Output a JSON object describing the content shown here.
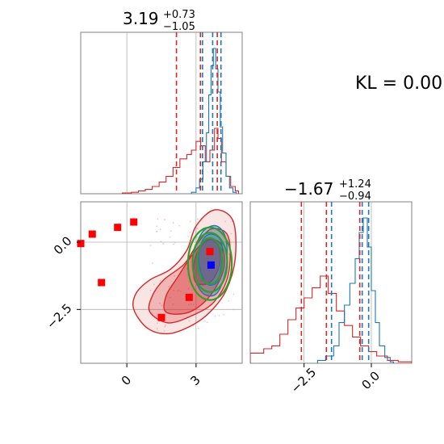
{
  "chart_data": {
    "type": "corner",
    "annotation": "KL = 0.00",
    "params": [
      {
        "median": "3.19",
        "err_plus": "+0.73",
        "err_minus": "−1.05"
      },
      {
        "median": "−1.67",
        "err_plus": "+1.24",
        "err_minus": "−0.94"
      }
    ],
    "x_range": [
      -2.0,
      5.0
    ],
    "y_range": [
      -4.5,
      1.5
    ],
    "x_ticks": [
      {
        "v": 0,
        "label": "0"
      },
      {
        "v": 3,
        "label": "3"
      }
    ],
    "y_ticks": [
      {
        "v": 0.0,
        "label": "0.0"
      },
      {
        "v": -2.5,
        "label": "−2.5"
      }
    ],
    "colors": {
      "red": "#d62728",
      "blue": "#1f77b4",
      "green": "#2ca02c",
      "marker": "#ff0000",
      "truth": "#0000ff",
      "grid": "#b0b0b0"
    },
    "marginal_x": {
      "red_quantiles": [
        2.15,
        3.19,
        3.92
      ],
      "blue_quantiles": [
        3.28,
        3.72,
        4.08
      ],
      "red_hist": [
        [
          -0.2,
          0.005
        ],
        [
          0.2,
          0.01
        ],
        [
          0.5,
          0.02
        ],
        [
          0.8,
          0.03
        ],
        [
          1.1,
          0.05
        ],
        [
          1.4,
          0.08
        ],
        [
          1.7,
          0.12
        ],
        [
          2.0,
          0.18
        ],
        [
          2.3,
          0.24
        ],
        [
          2.6,
          0.27
        ],
        [
          2.8,
          0.3
        ],
        [
          3.0,
          0.36
        ],
        [
          3.2,
          0.33
        ],
        [
          3.4,
          0.22
        ],
        [
          3.6,
          0.3
        ],
        [
          3.8,
          0.45
        ],
        [
          3.95,
          0.38
        ],
        [
          4.1,
          0.22
        ],
        [
          4.3,
          0.12
        ],
        [
          4.5,
          0.05
        ],
        [
          4.7,
          0.02
        ]
      ],
      "blue_hist": [
        [
          2.8,
          0.01
        ],
        [
          3.0,
          0.04
        ],
        [
          3.15,
          0.1
        ],
        [
          3.3,
          0.22
        ],
        [
          3.45,
          0.42
        ],
        [
          3.55,
          0.68
        ],
        [
          3.65,
          0.88
        ],
        [
          3.75,
          1.0
        ],
        [
          3.85,
          0.86
        ],
        [
          3.95,
          0.7
        ],
        [
          4.05,
          0.46
        ],
        [
          4.15,
          0.28
        ],
        [
          4.3,
          0.12
        ],
        [
          4.45,
          0.04
        ],
        [
          4.6,
          0.01
        ]
      ]
    },
    "marginal_y": {
      "red_quantiles": [
        -2.6,
        -1.67,
        -0.43
      ],
      "blue_quantiles": [
        -1.48,
        -0.34,
        -0.1
      ],
      "red_hist": [
        [
          -4.5,
          0.07
        ],
        [
          -4.0,
          0.1
        ],
        [
          -3.7,
          0.12
        ],
        [
          -3.4,
          0.2
        ],
        [
          -3.1,
          0.3
        ],
        [
          -2.8,
          0.38
        ],
        [
          -2.5,
          0.45
        ],
        [
          -2.2,
          0.52
        ],
        [
          -1.9,
          0.6
        ],
        [
          -1.6,
          0.48
        ],
        [
          -1.3,
          0.36
        ],
        [
          -1.0,
          0.26
        ],
        [
          -0.7,
          0.18
        ],
        [
          -0.4,
          0.12
        ],
        [
          -0.1,
          0.08
        ],
        [
          0.2,
          0.05
        ],
        [
          0.6,
          0.02
        ],
        [
          1.0,
          0.01
        ],
        [
          1.5,
          0.0
        ]
      ],
      "blue_hist": [
        [
          -2.0,
          0.02
        ],
        [
          -1.7,
          0.05
        ],
        [
          -1.4,
          0.12
        ],
        [
          -1.2,
          0.28
        ],
        [
          -1.0,
          0.4
        ],
        [
          -0.8,
          0.55
        ],
        [
          -0.6,
          0.72
        ],
        [
          -0.45,
          0.9
        ],
        [
          -0.3,
          1.0
        ],
        [
          -0.15,
          0.8
        ],
        [
          0.0,
          0.5
        ],
        [
          0.15,
          0.28
        ],
        [
          0.3,
          0.12
        ],
        [
          0.5,
          0.04
        ],
        [
          0.7,
          0.01
        ]
      ]
    },
    "joint": {
      "red_markers": [
        [
          -2.0,
          -0.05
        ],
        [
          -1.5,
          0.3
        ],
        [
          -0.4,
          0.55
        ],
        [
          0.3,
          0.75
        ],
        [
          -1.1,
          -1.5
        ],
        [
          1.5,
          -2.8
        ],
        [
          2.7,
          -2.05
        ],
        [
          3.6,
          -0.35
        ]
      ],
      "truth_marker": [
        3.65,
        -0.85
      ],
      "red_contours": [
        [
          [
            0.3,
            -2.5
          ],
          [
            0.9,
            -3.2
          ],
          [
            1.8,
            -3.4
          ],
          [
            2.8,
            -3.1
          ],
          [
            3.6,
            -2.6
          ],
          [
            4.3,
            -1.8
          ],
          [
            4.7,
            -0.6
          ],
          [
            4.6,
            0.8
          ],
          [
            3.8,
            1.2
          ],
          [
            3.0,
            0.6
          ],
          [
            2.6,
            -0.3
          ],
          [
            1.9,
            -1.0
          ],
          [
            1.0,
            -1.4
          ],
          [
            0.4,
            -1.9
          ]
        ],
        [
          [
            1.0,
            -2.6
          ],
          [
            1.8,
            -3.0
          ],
          [
            2.9,
            -2.7
          ],
          [
            3.8,
            -2.2
          ],
          [
            4.4,
            -1.2
          ],
          [
            4.4,
            0.2
          ],
          [
            3.7,
            0.5
          ],
          [
            3.1,
            0.0
          ],
          [
            2.5,
            -0.8
          ],
          [
            1.6,
            -1.4
          ],
          [
            1.1,
            -2.0
          ]
        ],
        [
          [
            1.7,
            -2.6
          ],
          [
            2.7,
            -2.6
          ],
          [
            3.6,
            -2.0
          ],
          [
            4.2,
            -1.0
          ],
          [
            4.1,
            -0.1
          ],
          [
            3.5,
            0.1
          ],
          [
            2.9,
            -0.4
          ],
          [
            2.2,
            -1.3
          ],
          [
            1.7,
            -2.0
          ]
        ],
        [
          [
            3.0,
            -1.5
          ],
          [
            3.6,
            -1.5
          ],
          [
            4.0,
            -0.9
          ],
          [
            4.0,
            -0.2
          ],
          [
            3.6,
            0.1
          ],
          [
            3.1,
            -0.3
          ],
          [
            2.9,
            -0.9
          ]
        ]
      ],
      "blue_contours": [
        [
          [
            3.3,
            -1.9
          ],
          [
            3.9,
            -1.9
          ],
          [
            4.3,
            -1.0
          ],
          [
            4.3,
            0.1
          ],
          [
            3.9,
            0.6
          ],
          [
            3.3,
            0.4
          ],
          [
            2.9,
            -0.4
          ],
          [
            2.9,
            -1.2
          ]
        ],
        [
          [
            3.4,
            -1.5
          ],
          [
            3.9,
            -1.5
          ],
          [
            4.1,
            -0.8
          ],
          [
            4.1,
            0.0
          ],
          [
            3.7,
            0.3
          ],
          [
            3.3,
            0.1
          ],
          [
            3.1,
            -0.6
          ]
        ]
      ],
      "green_ellipses": [
        {
          "cx": 3.6,
          "cy": -0.8,
          "rx": 0.95,
          "ry": 1.35
        },
        {
          "cx": 3.6,
          "cy": -0.75,
          "rx": 0.75,
          "ry": 1.1
        },
        {
          "cx": 3.6,
          "cy": -0.7,
          "rx": 0.55,
          "ry": 0.85
        }
      ]
    }
  }
}
